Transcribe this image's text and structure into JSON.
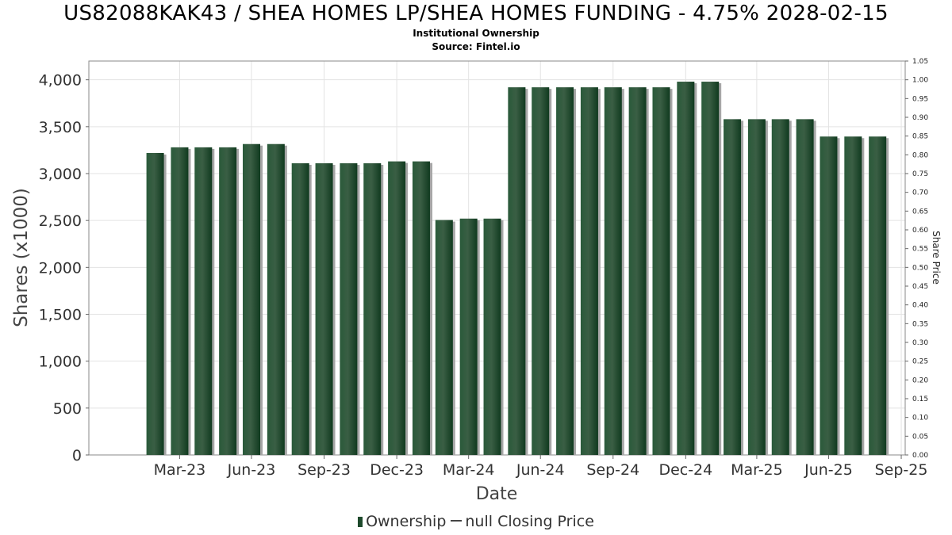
{
  "title": "US82088KAK43 / SHEA HOMES LP/SHEA HOMES FUNDING - 4.75% 2028-02-15",
  "subtitle_1": "Institutional Ownership",
  "subtitle_2": "Source: Fintel.io",
  "legend": {
    "ownership_label": "Ownership",
    "price_label": "null Closing Price"
  },
  "colors": {
    "bar": "#1e4a2c",
    "bar_shadow": "#a6a6a6",
    "grid": "#e3e3e3"
  },
  "chart_data": {
    "type": "bar",
    "xlabel": "Date",
    "ylabel": "Shares (x1000)",
    "y2label": "Share Price",
    "ylim": [
      0,
      4200
    ],
    "y2lim": [
      0,
      1.05
    ],
    "yticks": [
      0,
      500,
      1000,
      1500,
      2000,
      2500,
      3000,
      3500,
      4000
    ],
    "ytick_labels": [
      "0",
      "500",
      "1,000",
      "1,500",
      "2,000",
      "2,500",
      "3,000",
      "3,500",
      "4,000"
    ],
    "y2ticks": [
      0,
      0.05,
      0.1,
      0.15,
      0.2,
      0.25,
      0.3,
      0.35,
      0.4,
      0.45,
      0.5,
      0.55,
      0.6,
      0.65,
      0.7,
      0.75,
      0.8,
      0.85,
      0.9,
      0.95,
      1.0,
      1.05
    ],
    "y2tick_labels": [
      "0.00",
      "0.05",
      "0.10",
      "0.15",
      "0.20",
      "0.25",
      "0.30",
      "0.35",
      "0.40",
      "0.45",
      "0.50",
      "0.55",
      "0.60",
      "0.65",
      "0.70",
      "0.75",
      "0.80",
      "0.85",
      "0.90",
      "0.95",
      "1.00",
      "1.05"
    ],
    "x_range": [
      "2022-12-06",
      "2025-10-05"
    ],
    "xticks": [
      "2023-03-31",
      "2023-06-30",
      "2023-09-30",
      "2023-12-31",
      "2024-03-31",
      "2024-06-30",
      "2024-09-30",
      "2024-12-31",
      "2025-03-31",
      "2025-06-30",
      "2025-09-30"
    ],
    "xtick_labels": [
      "Mar-23",
      "Jun-23",
      "Sep-23",
      "Dec-23",
      "Mar-24",
      "Jun-24",
      "Sep-24",
      "Dec-24",
      "Mar-25",
      "Jun-25",
      "Sep-25"
    ],
    "grid": true,
    "legend_position": "bottom-center",
    "series": [
      {
        "name": "Ownership",
        "type": "bar",
        "x": [
          "2023-02-28",
          "2023-03-31",
          "2023-04-30",
          "2023-05-31",
          "2023-06-30",
          "2023-07-31",
          "2023-08-31",
          "2023-09-30",
          "2023-10-31",
          "2023-11-30",
          "2023-12-31",
          "2024-01-31",
          "2024-02-29",
          "2024-03-31",
          "2024-04-30",
          "2024-05-31",
          "2024-06-30",
          "2024-07-31",
          "2024-08-31",
          "2024-09-30",
          "2024-10-31",
          "2024-11-30",
          "2024-12-31",
          "2025-01-31",
          "2025-02-28",
          "2025-03-31",
          "2025-04-30",
          "2025-05-31",
          "2025-06-30",
          "2025-07-31",
          "2025-08-31"
        ],
        "values": [
          3220,
          3280,
          3280,
          3280,
          3315,
          3315,
          3110,
          3110,
          3110,
          3110,
          3130,
          3130,
          2505,
          2520,
          2520,
          3920,
          3920,
          3920,
          3920,
          3920,
          3920,
          3920,
          3980,
          3980,
          3580,
          3580,
          3580,
          3580,
          3395,
          3395,
          3395
        ]
      }
    ]
  }
}
